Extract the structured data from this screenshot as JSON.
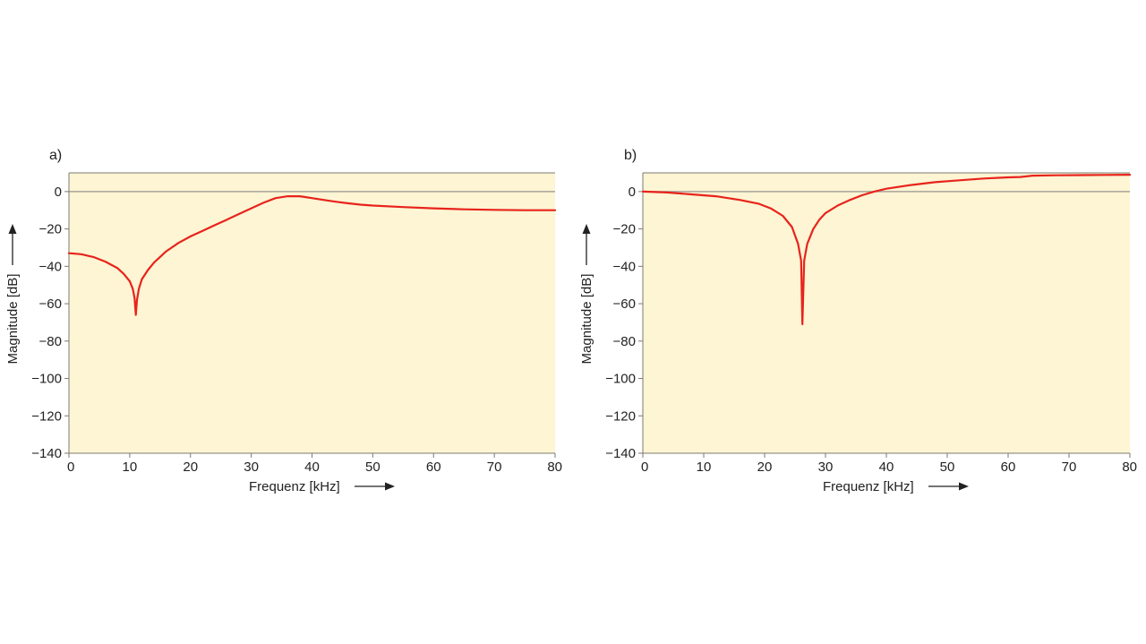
{
  "colors": {
    "plot_background": "#fdf5d3",
    "line": "#e8231c",
    "zero_line": "#a7a39a",
    "frame": "#7d7a72",
    "text": "#222222"
  },
  "chart_data": [
    {
      "type": "line",
      "panel_label": "a)",
      "xlabel": "Frequenz [kHz]",
      "ylabel": "Magnitude [dB]",
      "xlim": [
        0,
        80
      ],
      "ylim": [
        -140,
        10
      ],
      "xticks": [
        0,
        10,
        20,
        30,
        40,
        50,
        60,
        70,
        80
      ],
      "yticks": [
        0,
        -20,
        -40,
        -60,
        -80,
        -100,
        -120,
        -140
      ],
      "reference_line": 0,
      "grid": false,
      "series": [
        {
          "x": [
            0,
            2,
            4,
            6,
            8,
            9,
            10,
            10.5,
            10.8,
            11,
            11.2,
            11.5,
            12,
            13,
            14,
            16,
            18,
            20,
            22,
            24,
            26,
            28,
            30,
            32,
            34,
            36,
            37,
            38,
            39,
            40,
            42,
            44,
            46,
            48,
            50,
            55,
            60,
            65,
            70,
            75,
            80
          ],
          "y": [
            -33,
            -33.5,
            -35,
            -37.5,
            -41,
            -44,
            -48,
            -52,
            -57,
            -66,
            -58,
            -52,
            -47,
            -42,
            -38,
            -32,
            -27.5,
            -24,
            -21,
            -18,
            -15,
            -12,
            -9,
            -6,
            -3.5,
            -2.5,
            -2.5,
            -2.5,
            -3,
            -3.5,
            -4.5,
            -5.5,
            -6.3,
            -7,
            -7.5,
            -8.3,
            -9,
            -9.5,
            -9.8,
            -10,
            -10
          ]
        }
      ]
    },
    {
      "type": "line",
      "panel_label": "b)",
      "xlabel": "Frequenz [kHz]",
      "ylabel": "Magnitude [dB]",
      "xlim": [
        0,
        80
      ],
      "ylim": [
        -140,
        10
      ],
      "xticks": [
        0,
        10,
        20,
        30,
        40,
        50,
        60,
        70,
        80
      ],
      "yticks": [
        0,
        -20,
        -40,
        -60,
        -80,
        -100,
        -120,
        -140
      ],
      "reference_line": 0,
      "grid": false,
      "series": [
        {
          "x": [
            0,
            4,
            8,
            12,
            16,
            19,
            21,
            23,
            24.5,
            25.5,
            26,
            26.2,
            26.5,
            27,
            28,
            29,
            30,
            32,
            34,
            36,
            38,
            40,
            44,
            48,
            52,
            56,
            60,
            62,
            64,
            68,
            72,
            76,
            80
          ],
          "y": [
            0,
            -0.5,
            -1.5,
            -2.5,
            -4.5,
            -6.5,
            -9,
            -13,
            -19,
            -28,
            -37,
            -71,
            -37,
            -28,
            -20,
            -15,
            -11.5,
            -7.5,
            -4.5,
            -2,
            0,
            1.5,
            3.5,
            5,
            6,
            7,
            7.6,
            7.8,
            8.5,
            8.7,
            8.8,
            8.9,
            9
          ]
        }
      ]
    }
  ]
}
